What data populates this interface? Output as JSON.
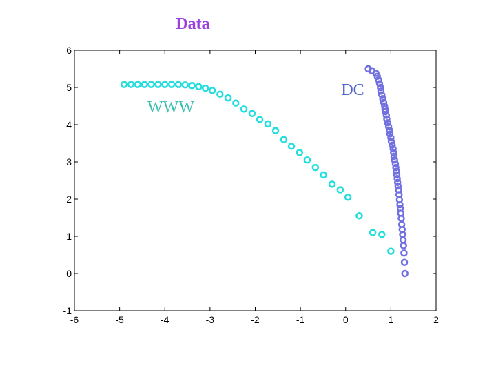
{
  "chart_data": {
    "type": "scatter",
    "title": "Data",
    "title_color": "#9b40e0",
    "xlabel": "",
    "ylabel": "",
    "xlim": [
      -6,
      2
    ],
    "ylim": [
      -1,
      6
    ],
    "xticks": [
      -6,
      -5,
      -4,
      -3,
      -2,
      -1,
      0,
      1,
      2
    ],
    "yticks": [
      -1,
      0,
      1,
      2,
      3,
      4,
      5,
      6
    ],
    "grid": false,
    "annotations": [
      {
        "text": "WWW",
        "color": "#3fbfb0"
      },
      {
        "text": "DC",
        "color": "#4a63c8"
      }
    ],
    "series": [
      {
        "label": "WWW",
        "color": "#22dede",
        "marker": "circle-open",
        "x": [
          -4.9,
          -4.75,
          -4.6,
          -4.45,
          -4.3,
          -4.15,
          -4.0,
          -3.85,
          -3.7,
          -3.55,
          -3.4,
          -3.25,
          -3.1,
          -2.95,
          -2.78,
          -2.6,
          -2.43,
          -2.25,
          -2.07,
          -1.9,
          -1.72,
          -1.55,
          -1.37,
          -1.2,
          -1.02,
          -0.85,
          -0.67,
          -0.49,
          -0.3,
          -0.12,
          0.05,
          0.3,
          0.6,
          0.8,
          1.0
        ],
        "y": [
          5.08,
          5.08,
          5.08,
          5.08,
          5.08,
          5.08,
          5.08,
          5.08,
          5.08,
          5.07,
          5.05,
          5.02,
          4.98,
          4.92,
          4.82,
          4.72,
          4.58,
          4.42,
          4.3,
          4.14,
          4.02,
          3.84,
          3.6,
          3.42,
          3.25,
          3.05,
          2.85,
          2.65,
          2.4,
          2.25,
          2.05,
          1.55,
          1.1,
          1.05,
          0.6
        ]
      },
      {
        "label": "DC",
        "color": "#7070e0",
        "marker": "circle-open",
        "x": [
          0.5,
          0.58,
          0.67,
          0.7,
          0.73,
          0.75,
          0.77,
          0.78,
          0.8,
          0.82,
          0.84,
          0.86,
          0.87,
          0.88,
          0.9,
          0.91,
          0.93,
          0.95,
          0.97,
          0.98,
          1.0,
          1.01,
          1.03,
          1.05,
          1.06,
          1.07,
          1.08,
          1.1,
          1.11,
          1.12,
          1.13,
          1.14,
          1.15,
          1.16,
          1.17,
          1.18,
          1.19,
          1.2,
          1.21,
          1.22,
          1.23,
          1.24,
          1.25,
          1.26,
          1.27,
          1.28,
          1.29,
          1.3,
          1.31
        ],
        "y": [
          5.5,
          5.45,
          5.38,
          5.3,
          5.2,
          5.1,
          5.0,
          4.9,
          4.8,
          4.7,
          4.6,
          4.5,
          4.42,
          4.35,
          4.25,
          4.15,
          4.05,
          3.95,
          3.85,
          3.75,
          3.65,
          3.55,
          3.45,
          3.35,
          3.25,
          3.15,
          3.05,
          2.95,
          2.85,
          2.75,
          2.65,
          2.55,
          2.45,
          2.35,
          2.25,
          2.12,
          1.98,
          1.85,
          1.75,
          1.62,
          1.48,
          1.32,
          1.18,
          1.05,
          0.9,
          0.75,
          0.55,
          0.3,
          0.0
        ]
      }
    ]
  }
}
